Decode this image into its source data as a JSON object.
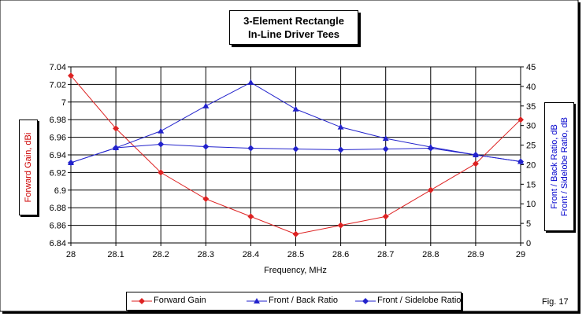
{
  "title_line1": "3-Element Rectangle",
  "title_line2": "In-Line Driver Tees",
  "figure_label": "Fig. 17",
  "colors": {
    "gain": "#dd2222",
    "blue": "#2222cc",
    "grid": "#000000"
  },
  "chart_data": {
    "type": "line",
    "title": "3-Element Rectangle In-Line Driver Tees",
    "xlabel": "Frequency, MHz",
    "ylabel_left": "Forward Gain, dBi",
    "ylabel_right_line1": "Front / Back Ratio, dB",
    "ylabel_right_line2": "Front / Sidelobe Ratio, dB",
    "x": [
      28,
      28.1,
      28.2,
      28.3,
      28.4,
      28.5,
      28.6,
      28.7,
      28.8,
      28.9,
      29
    ],
    "x_tick_labels": [
      "28",
      "28.1",
      "28.2",
      "28.3",
      "28.4",
      "28.5",
      "28.6",
      "28.7",
      "28.8",
      "28.9",
      "29"
    ],
    "xlim": [
      28,
      29
    ],
    "ylim_left": [
      6.84,
      7.04
    ],
    "ytick_labels_left": [
      "6.84",
      "6.86",
      "6.88",
      "6.9",
      "6.92",
      "6.94",
      "6.96",
      "6.98",
      "7",
      "7.02",
      "7.04"
    ],
    "ylim_right": [
      0,
      45
    ],
    "ytick_labels_right": [
      "0",
      "5",
      "10",
      "15",
      "20",
      "25",
      "30",
      "35",
      "40",
      "45"
    ],
    "grid": true,
    "legend_position": "bottom",
    "series": [
      {
        "name": "Forward Gain",
        "axis": "left",
        "marker": "diamond",
        "color": "#dd2222",
        "values": [
          7.03,
          6.97,
          6.92,
          6.89,
          6.87,
          6.85,
          6.86,
          6.87,
          6.9,
          6.93,
          6.98
        ]
      },
      {
        "name": "Front / Back Ratio",
        "axis": "right",
        "marker": "triangle",
        "color": "#2222cc",
        "values": [
          20.5,
          24.3,
          28.6,
          35.0,
          41.0,
          34.2,
          29.6,
          26.7,
          24.5,
          22.5,
          20.8
        ]
      },
      {
        "name": "Front / Sidelobe Ratio",
        "axis": "right",
        "marker": "diamond",
        "color": "#2222cc",
        "values": [
          20.5,
          24.3,
          25.2,
          24.6,
          24.2,
          24.0,
          23.8,
          24.0,
          24.2,
          22.5,
          20.8
        ]
      }
    ]
  }
}
